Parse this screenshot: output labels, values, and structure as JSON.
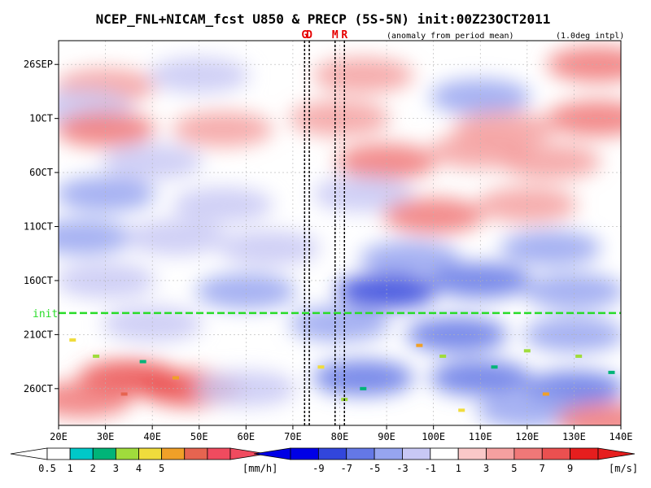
{
  "chart_data": {
    "type": "heatmap",
    "title": "NCEP_FNL+NICAM_fcst U850 & PRECP (5S-5N) init:00Z23OCT2011",
    "annotation_left": "(anomaly from period mean)",
    "annotation_right": "(1.0deg intpl)",
    "markers": [
      {
        "label": "G",
        "x": 72.5
      },
      {
        "label": "D",
        "x": 73.5
      },
      {
        "label": "M",
        "x": 79
      },
      {
        "label": "R",
        "x": 81
      }
    ],
    "init_label": "init",
    "init_day": 23,
    "x_ticks": [
      {
        "value": 20,
        "label": "20E"
      },
      {
        "value": 30,
        "label": "30E"
      },
      {
        "value": 40,
        "label": "40E"
      },
      {
        "value": 50,
        "label": "50E"
      },
      {
        "value": 60,
        "label": "60E"
      },
      {
        "value": 70,
        "label": "70E"
      },
      {
        "value": 80,
        "label": "80E"
      },
      {
        "value": 90,
        "label": "90E"
      },
      {
        "value": 100,
        "label": "100E"
      },
      {
        "value": 110,
        "label": "110E"
      },
      {
        "value": 120,
        "label": "120E"
      },
      {
        "value": 130,
        "label": "130E"
      },
      {
        "value": 140,
        "label": "140E"
      }
    ],
    "y_ticks": [
      {
        "day": 0,
        "label": "26SEP"
      },
      {
        "day": 5,
        "label": "1OCT"
      },
      {
        "day": 10,
        "label": "6OCT"
      },
      {
        "day": 15,
        "label": "11OCT"
      },
      {
        "day": 20,
        "label": "16OCT"
      },
      {
        "day": 25,
        "label": "21OCT"
      },
      {
        "day": 30,
        "label": "26OCT"
      }
    ],
    "xlim": [
      20,
      140
    ],
    "ylim_days": [
      -2.2,
      33.4
    ],
    "u850_field": [
      {
        "x": 30,
        "d": 2,
        "v": 3
      },
      {
        "x": 50,
        "d": 1,
        "v": -3
      },
      {
        "x": 85,
        "d": 1,
        "v": 4
      },
      {
        "x": 110,
        "d": 3,
        "v": -4
      },
      {
        "x": 135,
        "d": 0,
        "v": 5
      },
      {
        "x": 25,
        "d": 4,
        "v": -3
      },
      {
        "x": 30,
        "d": 6,
        "v": 5
      },
      {
        "x": 55,
        "d": 6,
        "v": 3
      },
      {
        "x": 80,
        "d": 5,
        "v": 4
      },
      {
        "x": 115,
        "d": 6,
        "v": 3
      },
      {
        "x": 135,
        "d": 5,
        "v": 6
      },
      {
        "x": 40,
        "d": 9,
        "v": -2
      },
      {
        "x": 90,
        "d": 9,
        "v": 6
      },
      {
        "x": 110,
        "d": 8,
        "v": 4
      },
      {
        "x": 125,
        "d": 9,
        "v": 3
      },
      {
        "x": 30,
        "d": 12,
        "v": -4
      },
      {
        "x": 55,
        "d": 13,
        "v": -3
      },
      {
        "x": 85,
        "d": 12,
        "v": -2
      },
      {
        "x": 100,
        "d": 14,
        "v": 6
      },
      {
        "x": 120,
        "d": 13,
        "v": 4
      },
      {
        "x": 25,
        "d": 16,
        "v": -5
      },
      {
        "x": 45,
        "d": 16,
        "v": -3
      },
      {
        "x": 65,
        "d": 17,
        "v": -3
      },
      {
        "x": 95,
        "d": 18,
        "v": -5
      },
      {
        "x": 125,
        "d": 17,
        "v": -4
      },
      {
        "x": 30,
        "d": 20,
        "v": -3
      },
      {
        "x": 60,
        "d": 21,
        "v": -4
      },
      {
        "x": 90,
        "d": 21,
        "v": -8
      },
      {
        "x": 110,
        "d": 20,
        "v": -7
      },
      {
        "x": 130,
        "d": 21,
        "v": -5
      },
      {
        "x": 40,
        "d": 24,
        "v": -2
      },
      {
        "x": 80,
        "d": 24,
        "v": -5
      },
      {
        "x": 105,
        "d": 25,
        "v": -6
      },
      {
        "x": 130,
        "d": 25,
        "v": -4
      },
      {
        "x": 35,
        "d": 29,
        "v": 8
      },
      {
        "x": 48,
        "d": 30,
        "v": 7
      },
      {
        "x": 25,
        "d": 31,
        "v": 5
      },
      {
        "x": 60,
        "d": 30,
        "v": -2
      },
      {
        "x": 85,
        "d": 29,
        "v": -6
      },
      {
        "x": 110,
        "d": 29,
        "v": -7
      },
      {
        "x": 130,
        "d": 30,
        "v": -6
      },
      {
        "x": 120,
        "d": 32,
        "v": -4
      },
      {
        "x": 137,
        "d": 33,
        "v": 6
      }
    ],
    "precip_cells": [
      {
        "x": 23,
        "d": 25.5,
        "v": 3
      },
      {
        "x": 28,
        "d": 27,
        "v": 2
      },
      {
        "x": 34,
        "d": 30.5,
        "v": 5
      },
      {
        "x": 38,
        "d": 27.5,
        "v": 1
      },
      {
        "x": 45,
        "d": 29,
        "v": 4
      },
      {
        "x": 76,
        "d": 28,
        "v": 3
      },
      {
        "x": 81,
        "d": 31,
        "v": 2
      },
      {
        "x": 85,
        "d": 30,
        "v": 1
      },
      {
        "x": 97,
        "d": 26,
        "v": 4
      },
      {
        "x": 102,
        "d": 27,
        "v": 2
      },
      {
        "x": 106,
        "d": 32,
        "v": 3
      },
      {
        "x": 113,
        "d": 28,
        "v": 1
      },
      {
        "x": 120,
        "d": 26.5,
        "v": 2
      },
      {
        "x": 124,
        "d": 30.5,
        "v": 4
      },
      {
        "x": 131,
        "d": 27,
        "v": 2
      },
      {
        "x": 138,
        "d": 28.5,
        "v": 1
      }
    ],
    "precip_colorbar": {
      "colors": [
        "#ffffff",
        "#00c8c8",
        "#00b478",
        "#a0dc3c",
        "#f0dc3c",
        "#f0a028",
        "#e66450",
        "#f04b5f"
      ],
      "labels": [
        "0.5",
        "1",
        "2",
        "3",
        "4",
        "5"
      ],
      "unit": "[mm/h]"
    },
    "u850_colorbar": {
      "colors": [
        "#0000e6",
        "#3246dc",
        "#6478e6",
        "#96a5f0",
        "#c8c8f5",
        "#ffffff",
        "#fac8c8",
        "#f5a0a0",
        "#f07878",
        "#eb5050",
        "#e61e1e"
      ],
      "labels": [
        "-9",
        "-7",
        "-5",
        "-3",
        "-1",
        "1",
        "3",
        "5",
        "7",
        "9"
      ],
      "unit": "[m/s]"
    },
    "grid": true
  }
}
